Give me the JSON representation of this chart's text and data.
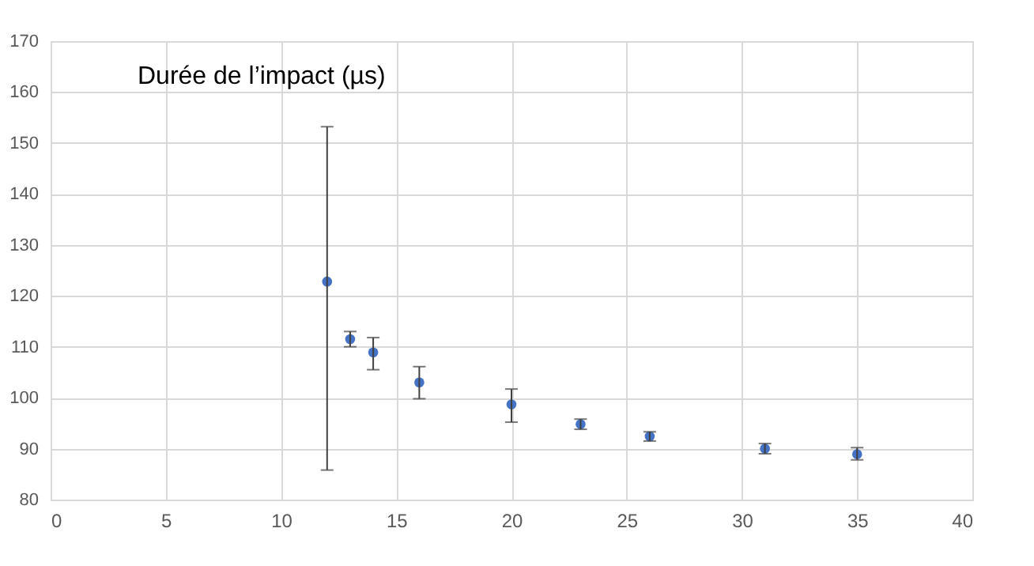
{
  "chart_data": {
    "type": "scatter",
    "title": "Durée de l’impact (µs)",
    "x": [
      12,
      13,
      14,
      16,
      20,
      23,
      26,
      31,
      35
    ],
    "series": [
      {
        "color": "#4472c4",
        "values": [
          122.8,
          111.5,
          108.9,
          103.0,
          98.7,
          94.8,
          92.4,
          90.0,
          88.9
        ],
        "errors": [
          [
            85.8,
            153.2
          ],
          [
            110.0,
            113.0
          ],
          [
            105.5,
            111.8
          ],
          [
            99.8,
            106.1
          ],
          [
            95.2,
            101.7
          ],
          [
            93.8,
            95.8
          ],
          [
            91.5,
            93.3
          ],
          [
            89.0,
            91.0
          ],
          [
            87.8,
            90.2
          ]
        ]
      }
    ],
    "xlim": [
      0,
      40
    ],
    "xticks": [
      0,
      5,
      10,
      15,
      20,
      25,
      30,
      35,
      40
    ],
    "ylim": [
      80,
      170
    ],
    "yticks": [
      80,
      90,
      100,
      110,
      120,
      130,
      140,
      150,
      160,
      170
    ],
    "grid": true,
    "marker": "circle"
  }
}
